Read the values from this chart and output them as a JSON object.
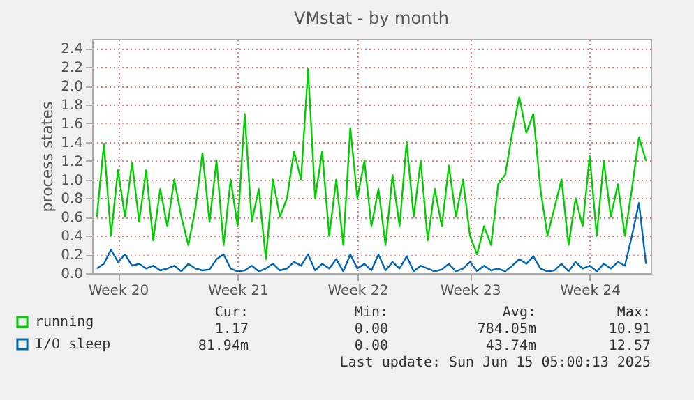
{
  "chart_data": {
    "type": "line",
    "title": "VMstat - by month",
    "ylabel": "process states",
    "categories": [
      null,
      null,
      null,
      "Week 20",
      null,
      null,
      null,
      null,
      null,
      null,
      null,
      null,
      null,
      null,
      null,
      null,
      null,
      null,
      null,
      null,
      "Week 21",
      null,
      null,
      null,
      null,
      null,
      null,
      null,
      null,
      null,
      null,
      null,
      null,
      null,
      null,
      null,
      null,
      "Week 22",
      null,
      null,
      null,
      null,
      null,
      null,
      null,
      null,
      null,
      null,
      null,
      null,
      null,
      null,
      null,
      "Week 23",
      null,
      null,
      null,
      null,
      null,
      null,
      null,
      null,
      null,
      null,
      null,
      null,
      null,
      null,
      null,
      null,
      "Week 24",
      null,
      null,
      null,
      null,
      null,
      null,
      null,
      null
    ],
    "series": [
      {
        "name": "running",
        "color": "#00cc00",
        "values": [
          0.6,
          1.38,
          0.4,
          1.1,
          0.6,
          1.18,
          0.55,
          1.1,
          0.35,
          0.9,
          0.5,
          1.0,
          0.6,
          0.3,
          0.7,
          1.28,
          0.55,
          1.2,
          0.3,
          1.0,
          0.5,
          1.7,
          0.55,
          0.9,
          0.15,
          1.0,
          0.6,
          0.8,
          1.3,
          1.0,
          2.18,
          0.8,
          1.3,
          0.4,
          1.0,
          0.3,
          1.55,
          0.8,
          1.2,
          0.5,
          0.9,
          0.3,
          1.05,
          0.5,
          1.4,
          0.6,
          1.2,
          0.35,
          0.9,
          0.5,
          1.15,
          0.6,
          1.0,
          0.4,
          0.2,
          0.5,
          0.3,
          0.95,
          1.05,
          1.5,
          1.88,
          1.5,
          1.7,
          0.9,
          0.4,
          0.7,
          1.0,
          0.3,
          0.8,
          0.5,
          1.25,
          0.4,
          1.2,
          0.6,
          0.95,
          0.4,
          0.9,
          1.45,
          1.2
        ]
      },
      {
        "name": "I/O sleep",
        "color": "#0066b3",
        "values": [
          0.05,
          0.1,
          0.25,
          0.12,
          0.2,
          0.08,
          0.1,
          0.05,
          0.08,
          0.03,
          0.05,
          0.08,
          0.02,
          0.1,
          0.05,
          0.03,
          0.04,
          0.15,
          0.2,
          0.05,
          0.02,
          0.03,
          0.08,
          0.02,
          0.05,
          0.1,
          0.03,
          0.05,
          0.12,
          0.08,
          0.2,
          0.03,
          0.1,
          0.05,
          0.15,
          0.02,
          0.2,
          0.05,
          0.1,
          0.03,
          0.2,
          0.03,
          0.12,
          0.05,
          0.18,
          0.02,
          0.08,
          0.05,
          0.02,
          0.04,
          0.1,
          0.02,
          0.05,
          0.12,
          0.02,
          0.08,
          0.03,
          0.05,
          0.02,
          0.08,
          0.15,
          0.1,
          0.18,
          0.05,
          0.02,
          0.03,
          0.1,
          0.02,
          0.12,
          0.05,
          0.08,
          0.02,
          0.1,
          0.05,
          0.12,
          0.08,
          0.4,
          0.75,
          0.1
        ]
      }
    ],
    "ylim": [
      0,
      2.5
    ],
    "yticks": [
      {
        "value": 0,
        "label": "0.0"
      },
      0.2,
      0.4,
      0.6,
      0.8,
      {
        "value": 1,
        "label": "1.0"
      },
      1.2,
      1.4,
      1.6,
      1.8,
      {
        "value": 2,
        "label": "2.0"
      },
      2.2,
      2.4
    ],
    "grid": true,
    "legend": "bottom left",
    "marker": "none",
    "line_style": "solid",
    "annotations": [
      "Cur:",
      "Min:",
      "Avg:",
      "Max:",
      "1.17",
      "0.00",
      "784.05m",
      "10.91",
      "81.94m",
      "0.00",
      "43.74m",
      "12.57",
      "Last update: Sun Jun 15 05:00:13 2025"
    ]
  }
}
